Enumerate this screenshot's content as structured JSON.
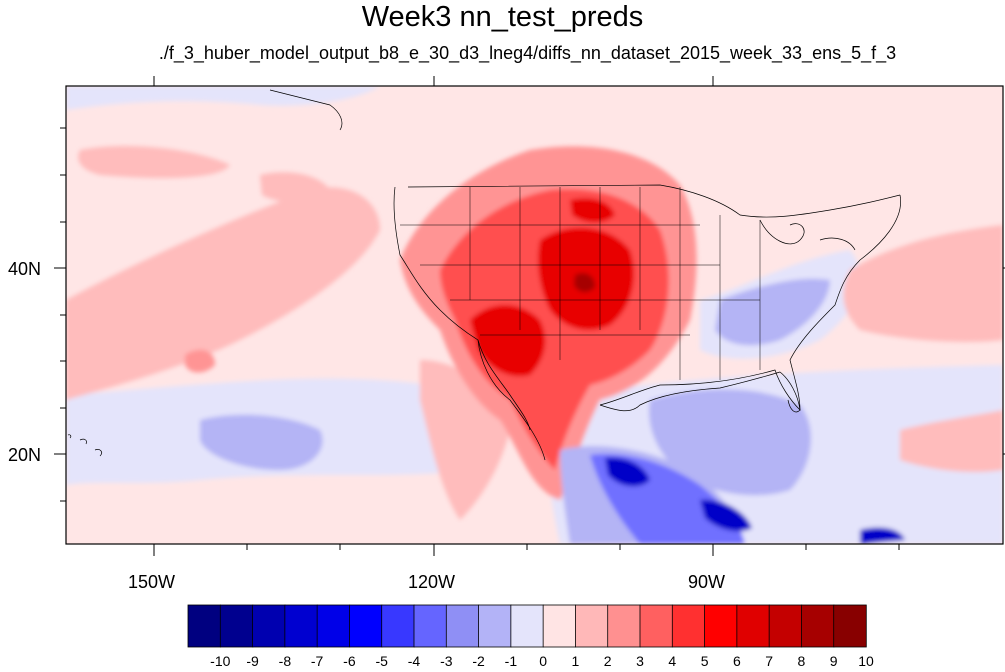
{
  "title": "Week3 nn_test_preds",
  "subtitle": "./f_3_huber_model_output_b8_e_30_d3_lneg4/diffs_nn_dataset_2015_week_33_ens_5_f_3",
  "axes": {
    "x_ticks": [
      "150W",
      "120W",
      "90W"
    ],
    "y_ticks": [
      "40N",
      "20N"
    ]
  },
  "colorbar": {
    "labels": [
      "-10",
      "-9",
      "-8",
      "-7",
      "-6",
      "-5",
      "-4",
      "-3",
      "-2",
      "-1",
      "0",
      "1",
      "2",
      "3",
      "4",
      "5",
      "6",
      "7",
      "8",
      "9",
      "10"
    ],
    "colors": [
      "#000080",
      "#00008f",
      "#0000b0",
      "#0000d0",
      "#0000e8",
      "#0000ff",
      "#3838ff",
      "#6565ff",
      "#8f8ff5",
      "#b3b3f7",
      "#e4e4fb",
      "#ffe4e4",
      "#ffb8b8",
      "#ff9090",
      "#ff6060",
      "#ff3030",
      "#ff0000",
      "#e00000",
      "#c40000",
      "#a60000",
      "#880000"
    ]
  },
  "colors": {
    "background_anomaly": "#ffe6e6",
    "light_pos": "#ffbcbc",
    "mid_pos": "#ff9494",
    "strong_pos": "#ff5050",
    "peak_pos": "#e80000",
    "light_neg": "#e4e4fb",
    "mid_neg": "#b4b4f5",
    "strong_neg": "#7070ff",
    "peak_neg": "#0000c8"
  }
}
